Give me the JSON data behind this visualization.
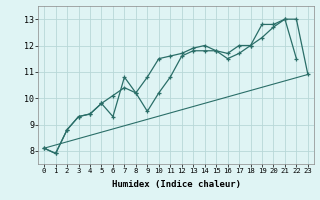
{
  "xlabel": "Humidex (Indice chaleur)",
  "bg_color": "#dff4f4",
  "grid_color": "#b8d8d8",
  "line_color": "#2a6e68",
  "line1_x": [
    0,
    1,
    2,
    3,
    4,
    5,
    6,
    7,
    8,
    9,
    10,
    11,
    12,
    13,
    14,
    15,
    16,
    17,
    18,
    19,
    20,
    21,
    22,
    23
  ],
  "line1_y": [
    8.1,
    7.9,
    8.8,
    9.3,
    9.4,
    9.8,
    10.1,
    10.4,
    10.2,
    10.8,
    11.5,
    11.6,
    11.7,
    11.9,
    12.0,
    11.8,
    11.5,
    11.7,
    12.0,
    12.3,
    12.7,
    13.0,
    13.0,
    10.9
  ],
  "line2_x": [
    0,
    1,
    2,
    3,
    4,
    5,
    6,
    7,
    8,
    9,
    10,
    11,
    12,
    13,
    14,
    15,
    16,
    17,
    18,
    19,
    20,
    21,
    22
  ],
  "line2_y": [
    8.1,
    7.9,
    8.8,
    9.3,
    9.4,
    9.8,
    9.3,
    10.8,
    10.2,
    9.5,
    10.2,
    10.8,
    11.6,
    11.8,
    11.8,
    11.8,
    11.7,
    12.0,
    12.0,
    12.8,
    12.8,
    13.0,
    11.5
  ],
  "line3_x": [
    0,
    23
  ],
  "line3_y": [
    8.1,
    10.9
  ],
  "ylim": [
    7.5,
    13.5
  ],
  "xlim": [
    -0.5,
    23.5
  ],
  "yticks": [
    8,
    9,
    10,
    11,
    12,
    13
  ],
  "xticks": [
    0,
    1,
    2,
    3,
    4,
    5,
    6,
    7,
    8,
    9,
    10,
    11,
    12,
    13,
    14,
    15,
    16,
    17,
    18,
    19,
    20,
    21,
    22,
    23
  ]
}
